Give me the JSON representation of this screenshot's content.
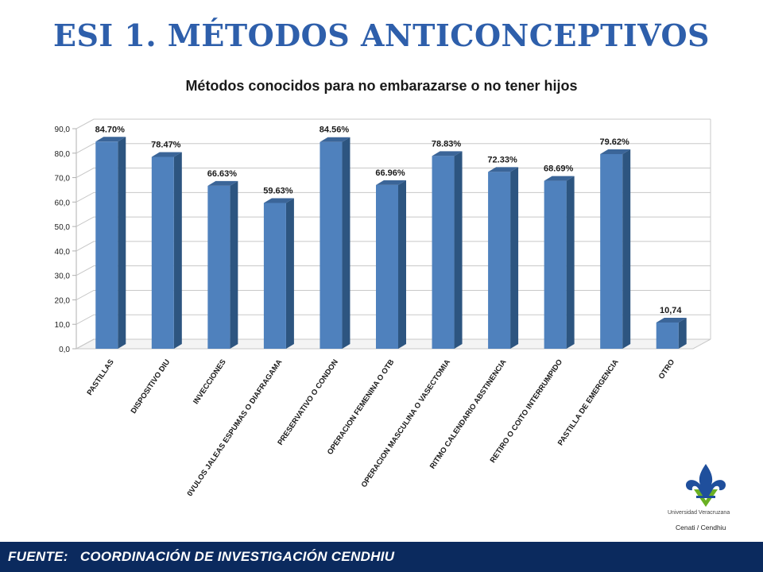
{
  "slide": {
    "title": "ESI 1.  MÉTODOS ANTICONCEPTIVOS",
    "footer": "FUENTE:   COORDINACIÓN DE INVESTIGACIÓN CENDHIU",
    "logo": {
      "institution": "Universidad Veracruzana",
      "department": "Cenati / Cendhiu"
    }
  },
  "colors": {
    "title": "#2E5FAB",
    "bar_front": "#4F81BD",
    "bar_side": "#2D5580",
    "bar_top": "#3B6598",
    "footer": "#0b2a5e",
    "logo_blue": "#1f4f9c",
    "logo_green": "#6ab023"
  },
  "chart_data": {
    "type": "bar",
    "title": "Métodos conocidos  para no embarazarse o no tener hijos",
    "categories": [
      "PASTILLAS",
      "DISPOSITIVO DIU",
      "INVECCIONES",
      "0VULOS JALEAS ESPUMAS O DIAFRAGAMA",
      "PRESERVATIVO O CONDON",
      "OPERACION FEMENINA O OTB",
      "OPERACION MASCULINA O VASECTOMIA",
      "RITMO CALENDARIO ABSTINENCIA",
      "RETIRO O COITO INTERRUMPIDO",
      "PASTILLA DE EMERGENCIA",
      "OTRO"
    ],
    "values": [
      84.7,
      78.47,
      66.63,
      59.63,
      84.56,
      66.96,
      78.83,
      72.33,
      68.69,
      79.62,
      10.74
    ],
    "data_labels": [
      "84.70%",
      "78.47%",
      "66.63%",
      "59.63%",
      "84.56%",
      "66.96%",
      "78.83%",
      "72.33%",
      "68.69%",
      "79.62%",
      "10,74"
    ],
    "y_ticks": [
      "0,0",
      "10,0",
      "20,0",
      "30,0",
      "40,0",
      "50,0",
      "60,0",
      "70,0",
      "80,0",
      "90,0"
    ],
    "ylim": [
      0,
      90
    ],
    "grid": true,
    "style": "3d-column",
    "xlabel": "",
    "ylabel": ""
  }
}
